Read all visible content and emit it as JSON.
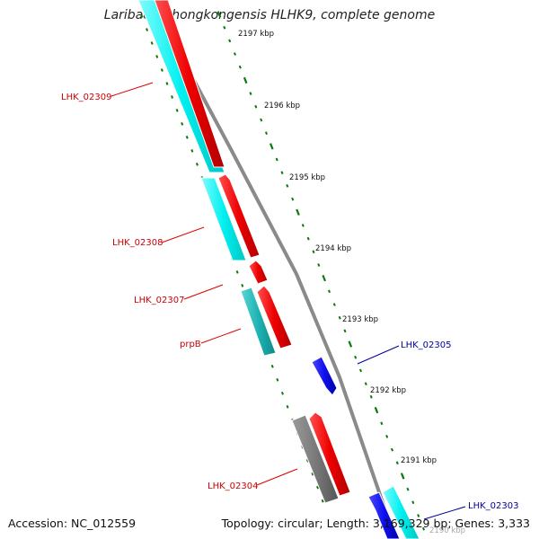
{
  "title": "Laribacter hongkongensis HLHK9, complete genome",
  "footer": {
    "accession": "Accession: NC_012559",
    "topology": "Topology: circular; Length: 3,169,329 bp; Genes: 3,333"
  },
  "colors": {
    "forward_cds": "#ff0000",
    "reverse_cds": "#0000ff",
    "forward_gene": "#00e5e5",
    "reverse_gene": "#00ffff",
    "other_gene": "#808080",
    "backbone": "#808080",
    "ticks": "#0a7a0a",
    "forward_label": "#cc0000",
    "reverse_label": "#000099"
  },
  "ruler": {
    "ticks": [
      {
        "label": "2197 kbp"
      },
      {
        "label": "2196 kbp"
      },
      {
        "label": "2195 kbp"
      },
      {
        "label": "2194 kbp"
      },
      {
        "label": "2193 kbp"
      },
      {
        "label": "2192 kbp"
      },
      {
        "label": "2191 kbp"
      },
      {
        "label": "2190 kbp"
      }
    ]
  },
  "gene_labels": [
    {
      "text": "LHK_02309",
      "strand": "forward"
    },
    {
      "text": "LHK_02308",
      "strand": "forward"
    },
    {
      "text": "LHK_02307",
      "strand": "forward"
    },
    {
      "text": "prpB",
      "strand": "forward"
    },
    {
      "text": "LHK_02305",
      "strand": "reverse"
    },
    {
      "text": "LHK_02304",
      "strand": "forward"
    },
    {
      "text": "LHK_02303",
      "strand": "reverse"
    }
  ]
}
